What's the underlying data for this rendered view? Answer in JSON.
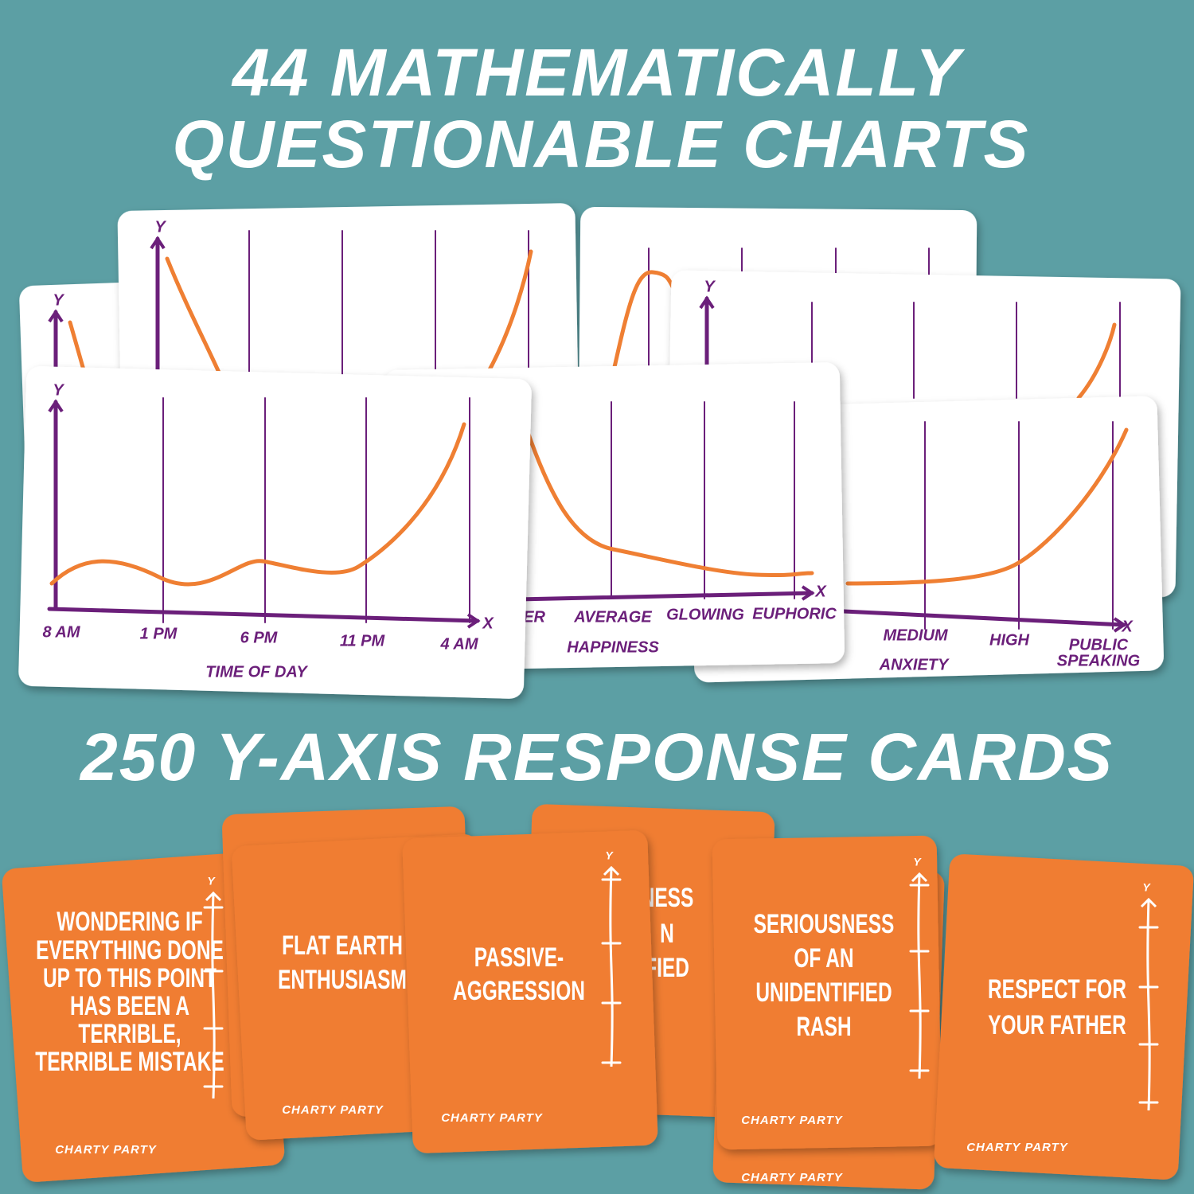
{
  "headline": {
    "line1": "44 MATHEMATICALLY",
    "line2": "QUESTIONABLE CHARTS"
  },
  "chart_cards": [
    {
      "y_label": "Y"
    },
    {
      "y_label": "Y"
    },
    {
      "y_label": "Y"
    },
    {
      "y_label": "Y",
      "x_label": "X",
      "x_ticks": [
        "8 AM",
        "1 PM",
        "6 PM",
        "11 PM",
        "4 AM"
      ],
      "axis_title": "TIME OF DAY"
    },
    {
      "x_label": "X",
      "x_ticks": [
        "TER",
        "AVERAGE",
        "GLOWING",
        "EUPHORIC"
      ],
      "axis_title": "HAPPINESS"
    },
    {
      "x_label": "X",
      "x_ticks": [
        "MEDIUM",
        "HIGH",
        [
          "PUBLIC",
          "SPEAKING"
        ]
      ],
      "axis_title": "ANXIETY"
    }
  ],
  "subheadline": "250 Y-AXIS RESPONSE CARDS",
  "response_cards": [
    {
      "lines": [
        "WONDERING IF",
        "EVERYTHING DONE",
        "UP TO THIS POINT",
        "HAS BEEN A",
        "TERRIBLE,",
        "TERRIBLE MISTAKE"
      ],
      "y_label": "Y",
      "brand": "CHARTY PARTY"
    },
    {
      "lines": [
        "FLAT EARTH",
        "ENTHUSIASM"
      ],
      "brand": "CHARTY PARTY"
    },
    {
      "lines": [
        "NESS",
        "N",
        "FIED"
      ]
    },
    {
      "lines": [
        "PASSIVE-",
        "AGGRESSION"
      ],
      "y_label": "Y",
      "brand": "CHARTY PARTY"
    },
    {
      "brand": "CHARTY PARTY"
    },
    {
      "lines": [
        "SERIOUSNESS",
        "OF AN",
        "UNIDENTIFIED",
        "RASH"
      ],
      "y_label": "Y",
      "brand": "CHARTY PARTY"
    },
    {
      "lines": [
        "RESPECT FOR",
        "YOUR FATHER"
      ],
      "y_label": "Y",
      "brand": "CHARTY PARTY"
    }
  ]
}
